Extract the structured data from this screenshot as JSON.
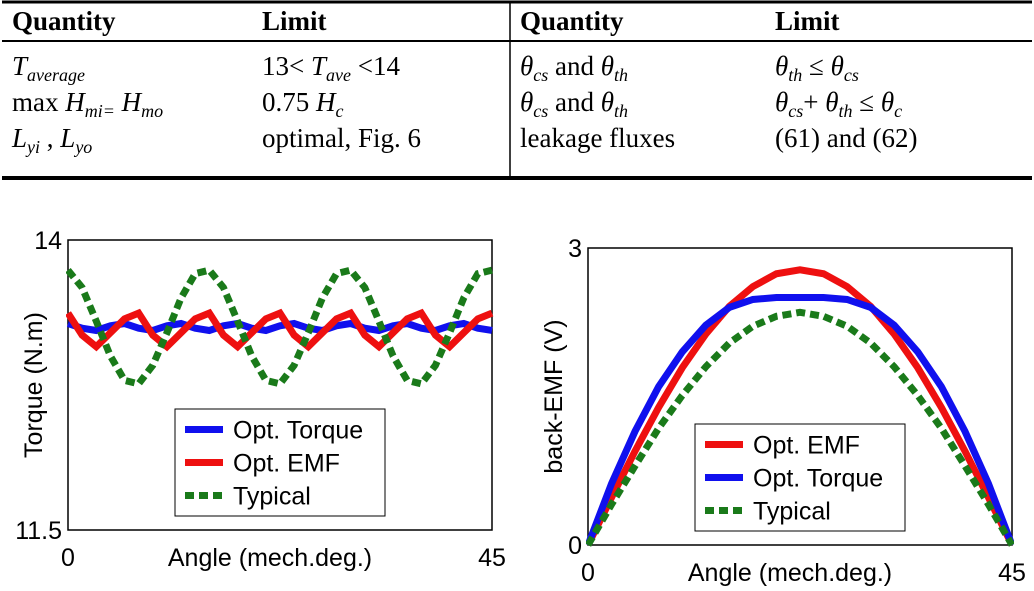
{
  "table": {
    "header": [
      "Quantity",
      "Limit",
      "Quantity",
      "Limit"
    ],
    "rows": [
      [
        [
          {
            "text": "T",
            "italic": true
          },
          {
            "text": "average",
            "italic": true,
            "sub": true
          }
        ],
        [
          {
            "text": "13< "
          },
          {
            "text": "T",
            "italic": true
          },
          {
            "text": "ave",
            "italic": true,
            "sub": true
          },
          {
            "text": " <14"
          }
        ],
        [
          {
            "text": "θ",
            "italic": true
          },
          {
            "text": "cs",
            "italic": true,
            "sub": true
          },
          {
            "text": " and "
          },
          {
            "text": "θ",
            "italic": true
          },
          {
            "text": "th",
            "italic": true,
            "sub": true
          }
        ],
        [
          {
            "text": "θ",
            "italic": true
          },
          {
            "text": "th",
            "italic": true,
            "sub": true
          },
          {
            "text": " ≤ "
          },
          {
            "text": "θ",
            "italic": true
          },
          {
            "text": "cs",
            "italic": true,
            "sub": true
          }
        ]
      ],
      [
        [
          {
            "text": "max "
          },
          {
            "text": "H",
            "italic": true
          },
          {
            "text": "mi=",
            "italic": true,
            "sub": true
          },
          {
            "text": " H",
            "italic": true
          },
          {
            "text": "mo",
            "italic": true,
            "sub": true
          }
        ],
        [
          {
            "text": "0.75 "
          },
          {
            "text": "H",
            "italic": true
          },
          {
            "text": "c",
            "italic": true,
            "sub": true
          }
        ],
        [
          {
            "text": "θ",
            "italic": true
          },
          {
            "text": "cs",
            "italic": true,
            "sub": true
          },
          {
            "text": " and "
          },
          {
            "text": "θ",
            "italic": true
          },
          {
            "text": "th",
            "italic": true,
            "sub": true
          }
        ],
        [
          {
            "text": "θ",
            "italic": true
          },
          {
            "text": "cs",
            "italic": true,
            "sub": true
          },
          {
            "text": "+ "
          },
          {
            "text": "θ",
            "italic": true
          },
          {
            "text": "th",
            "italic": true,
            "sub": true
          },
          {
            "text": " ≤ "
          },
          {
            "text": "θ",
            "italic": true
          },
          {
            "text": "c",
            "italic": true,
            "sub": true
          }
        ]
      ],
      [
        [
          {
            "text": "L",
            "italic": true
          },
          {
            "text": "yi",
            "italic": true,
            "sub": true
          },
          {
            "text": " , "
          },
          {
            "text": "L",
            "italic": true
          },
          {
            "text": "yo",
            "italic": true,
            "sub": true
          }
        ],
        [
          {
            "text": "optimal, Fig. 6"
          }
        ],
        [
          {
            "text": "leakage fluxes"
          }
        ],
        [
          {
            "text": "(61) and (62)"
          }
        ]
      ]
    ]
  },
  "chart_data": [
    {
      "type": "line",
      "xlabel": "Angle (mech.deg.)",
      "ylabel": "Torque (N.m)",
      "xlim": [
        0,
        45
      ],
      "xticks": [
        0,
        45
      ],
      "ylim": [
        11.5,
        14
      ],
      "yticks": [
        11.5,
        14
      ],
      "legend": "lower center",
      "x": [
        0,
        1.5,
        3,
        4.5,
        6,
        7.5,
        9,
        10.5,
        12,
        13.5,
        15,
        16.5,
        18,
        19.5,
        21,
        22.5,
        24,
        25.5,
        27,
        28.5,
        30,
        31.5,
        33,
        34.5,
        36,
        37.5,
        39,
        40.5,
        42,
        43.5,
        45
      ],
      "series": [
        {
          "name": "Opt. Torque",
          "color": "#1010ee",
          "dashed": false,
          "values": [
            13.28,
            13.24,
            13.22,
            13.26,
            13.28,
            13.24,
            13.22,
            13.26,
            13.28,
            13.24,
            13.22,
            13.26,
            13.28,
            13.24,
            13.22,
            13.26,
            13.28,
            13.24,
            13.22,
            13.26,
            13.28,
            13.24,
            13.22,
            13.26,
            13.28,
            13.24,
            13.22,
            13.26,
            13.28,
            13.24,
            13.22
          ]
        },
        {
          "name": "Opt. EMF",
          "color": "#ee1010",
          "dashed": false,
          "values": [
            13.37,
            13.18,
            13.08,
            13.2,
            13.32,
            13.37,
            13.18,
            13.08,
            13.2,
            13.32,
            13.37,
            13.18,
            13.08,
            13.2,
            13.32,
            13.37,
            13.18,
            13.08,
            13.2,
            13.32,
            13.37,
            13.18,
            13.08,
            13.2,
            13.32,
            13.37,
            13.18,
            13.08,
            13.2,
            13.32,
            13.37
          ]
        },
        {
          "name": "Typical",
          "color": "#1a7a1a",
          "dashed": true,
          "values": [
            13.74,
            13.59,
            13.3,
            13.0,
            12.79,
            12.76,
            12.92,
            13.2,
            13.5,
            13.71,
            13.74,
            13.59,
            13.3,
            13.0,
            12.79,
            12.76,
            12.92,
            13.2,
            13.5,
            13.71,
            13.74,
            13.59,
            13.3,
            13.0,
            12.79,
            12.76,
            12.92,
            13.2,
            13.5,
            13.71,
            13.74
          ]
        }
      ]
    },
    {
      "type": "line",
      "xlabel": "Angle (mech.deg.)",
      "ylabel": "back-EMF (V)",
      "xlim": [
        0,
        45
      ],
      "xticks": [
        0,
        45
      ],
      "ylim": [
        0,
        3
      ],
      "yticks": [
        0,
        3
      ],
      "legend": "lower center",
      "x": [
        0,
        2.5,
        5,
        7.5,
        10,
        12.5,
        15,
        17.5,
        20,
        22.5,
        25,
        27.5,
        30,
        32.5,
        35,
        37.5,
        40,
        42.5,
        45
      ],
      "series": [
        {
          "name": "Opt. EMF",
          "color": "#ee1010",
          "dashed": false,
          "values": [
            0,
            0.48,
            0.95,
            1.39,
            1.79,
            2.13,
            2.41,
            2.61,
            2.74,
            2.78,
            2.74,
            2.61,
            2.41,
            2.13,
            1.79,
            1.39,
            0.95,
            0.48,
            0
          ]
        },
        {
          "name": "Opt. Torque",
          "color": "#1010ee",
          "dashed": false,
          "values": [
            0,
            0.62,
            1.15,
            1.6,
            1.95,
            2.22,
            2.4,
            2.48,
            2.5,
            2.5,
            2.5,
            2.48,
            2.4,
            2.22,
            1.95,
            1.6,
            1.15,
            0.62,
            0
          ]
        },
        {
          "name": "Typical",
          "color": "#1a7a1a",
          "dashed": true,
          "values": [
            0,
            0.41,
            0.8,
            1.18,
            1.51,
            1.8,
            2.04,
            2.21,
            2.31,
            2.35,
            2.31,
            2.21,
            2.04,
            1.8,
            1.51,
            1.18,
            0.8,
            0.41,
            0
          ]
        }
      ]
    }
  ]
}
